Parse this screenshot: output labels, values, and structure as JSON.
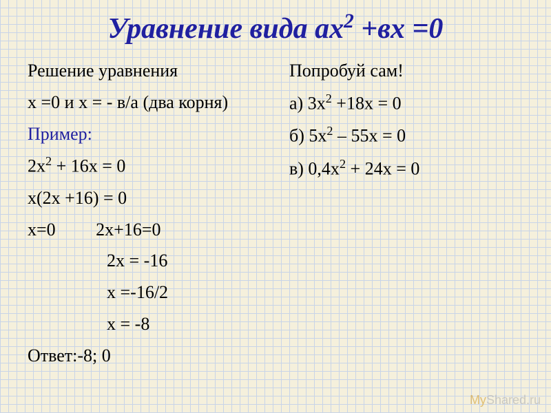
{
  "title_parts": {
    "p1": "Уравнение вида ах",
    "sup1": "2",
    "p2": " +вх =0"
  },
  "left": {
    "l1": "Решение уравнения",
    "l2": "х =0 и х = - в/а (два корня)",
    "l3": "Пример:",
    "l4_p1": "2х",
    "l4_sup": "2",
    "l4_p2": " + 16х = 0",
    "l5": "х(2х +16) = 0",
    "l6_a": "х=0",
    "l6_b": "2х+16=0",
    "l7": "2х = -16",
    "l8": "х =-16/2",
    "l9": "х = -8",
    "l10": "Ответ:-8; 0"
  },
  "right": {
    "r1": "Попробуй сам!",
    "r2_p1": "а) 3х",
    "r2_sup": "2",
    "r2_p2": " +18х = 0",
    "r3_p1": "б) 5х",
    "r3_sup": "2",
    "r3_p2": " – 55х = 0",
    "r4_p1": "в) 0,4х",
    "r4_sup": "2",
    "r4_p2": " + 24х = 0"
  },
  "watermark": {
    "my": "My",
    "rest": "Shared.ru"
  },
  "colors": {
    "title": "#2020a0",
    "example": "#2020a0",
    "text": "#000000",
    "bg": "#f5f0dc",
    "grid": "#c8d4e8"
  }
}
